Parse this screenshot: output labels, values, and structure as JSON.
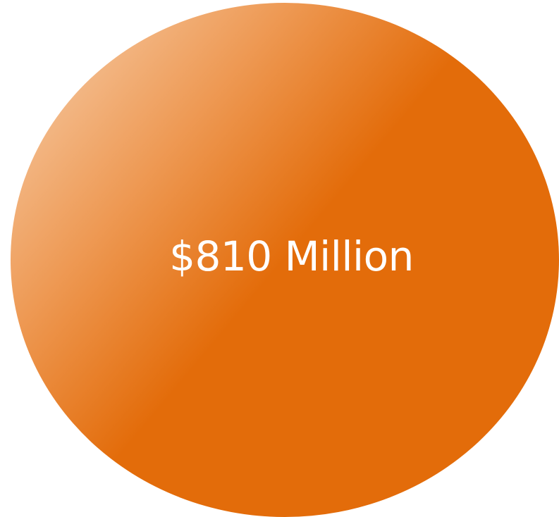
{
  "bubble": {
    "value_text": "$810 Million",
    "colors": {
      "fill_main": "#e36c0a",
      "fill_highlight": "#f7d3b3",
      "fill_mid": "#ee9a55",
      "text": "#ffffff",
      "background": "#ffffff"
    }
  }
}
